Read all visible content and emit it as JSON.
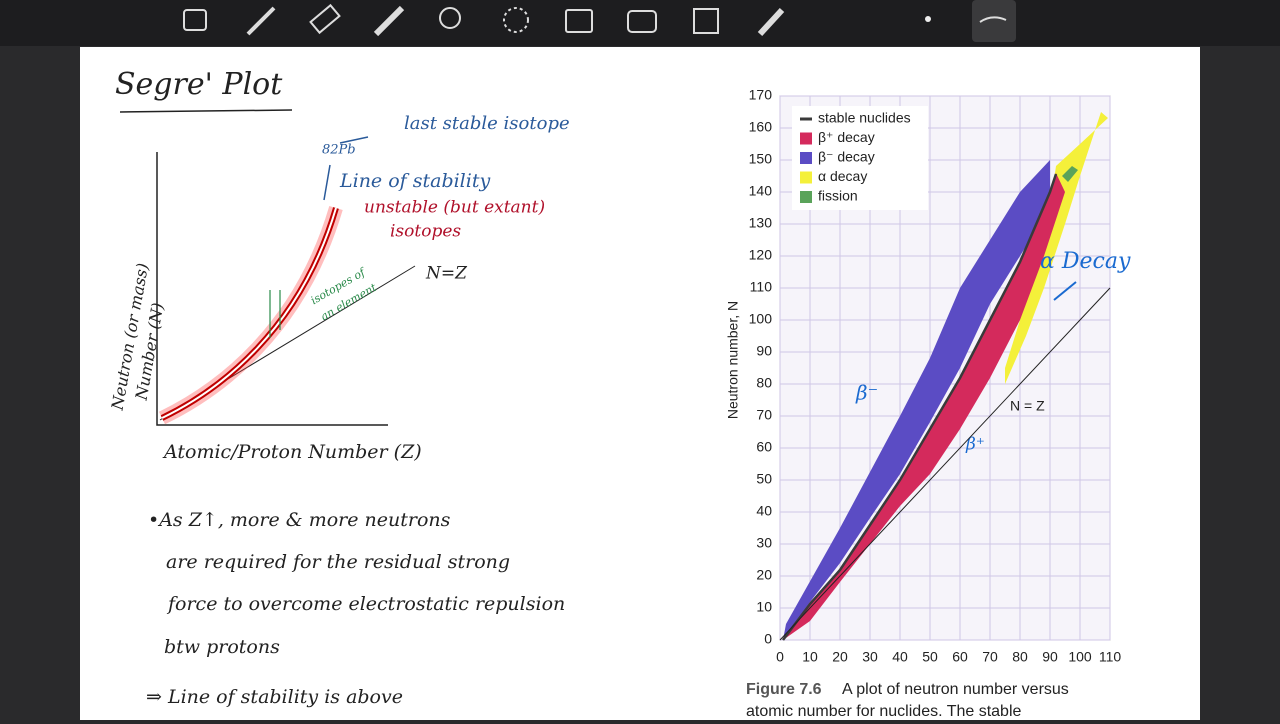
{
  "notes": {
    "title": "Segre' Plot",
    "sketch": {
      "lead_label": "82Pb",
      "lead_note": "last stable isotope",
      "stability_label": "Line of stability",
      "unstable_label": [
        "unstable (but extant)",
        "isotopes"
      ],
      "isotopes_label": [
        "isotopes of",
        "an element"
      ],
      "nz_label": "N=Z",
      "y_label": [
        "Neutron (or mass)",
        "Number (N)"
      ],
      "x_label": "Atomic/Proton Number (Z)"
    },
    "bullets": [
      "•As Z↑, more & more neutrons",
      "are required for the residual strong",
      "force to overcome electrostatic repulsion",
      "btw protons",
      "⇒ Line of stability is above"
    ]
  },
  "figure": {
    "y_label": "Neutron number, N",
    "xlim": [
      0,
      110
    ],
    "ylim": [
      0,
      170
    ],
    "xticks": [
      0,
      10,
      20,
      30,
      40,
      50,
      60,
      70,
      80,
      90,
      100,
      110
    ],
    "yticks": [
      0,
      10,
      20,
      30,
      40,
      50,
      60,
      70,
      80,
      90,
      100,
      110,
      120,
      130,
      140,
      150,
      160,
      170
    ],
    "legend": [
      {
        "name": "stable nuclides",
        "color": "#3a3a3a"
      },
      {
        "name": "β⁺ decay",
        "color": "#d42a5c"
      },
      {
        "name": "β⁻ decay",
        "color": "#5b4cc4"
      },
      {
        "name": "α decay",
        "color": "#f4f03a"
      },
      {
        "name": "fission",
        "color": "#5aa35a"
      }
    ],
    "nz_label": "N = Z",
    "annotations": [
      "α Decay",
      "β⁻",
      "β⁺"
    ],
    "caption": [
      "Figure 7.6",
      "A plot of neutron number versus",
      "atomic number for nuclides. The stable"
    ]
  }
}
